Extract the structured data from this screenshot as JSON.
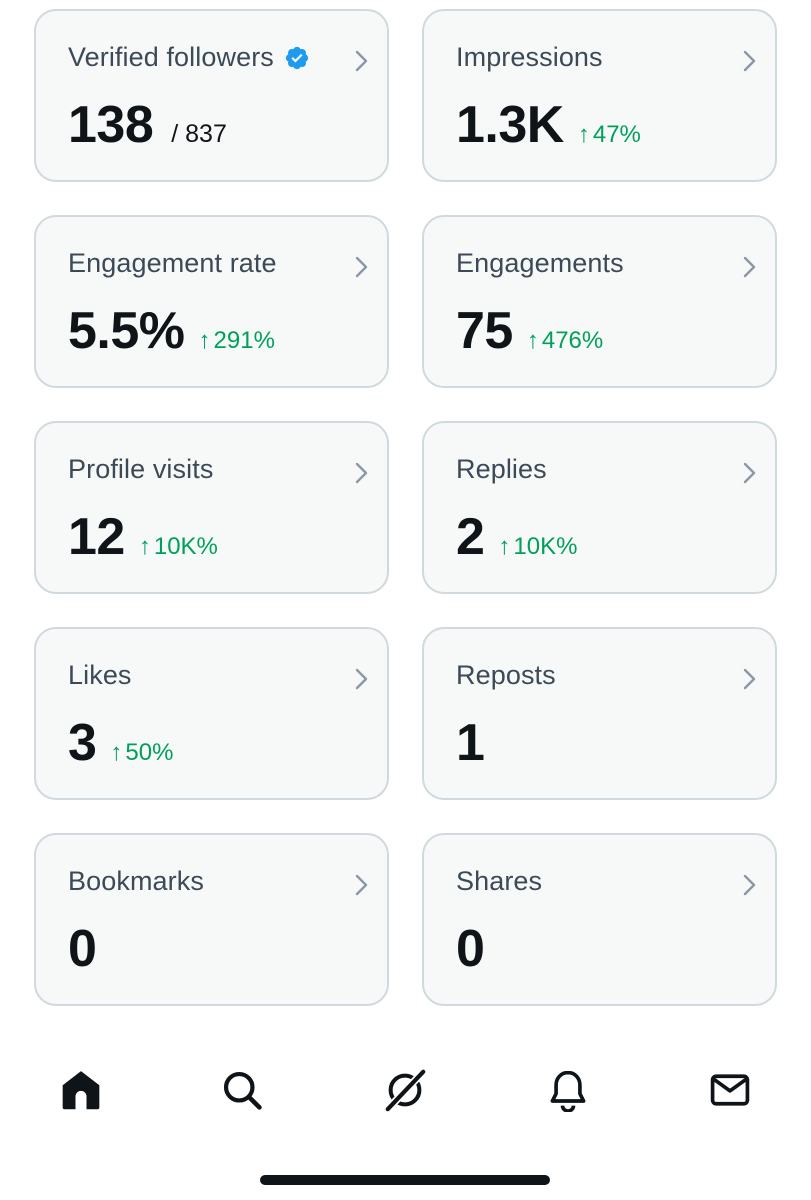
{
  "colors": {
    "card_bg": "#f7f9f9",
    "card_border": "#cfd9de",
    "label": "#3c4a57",
    "value": "#0f1419",
    "positive": "#00a05c",
    "verified_badge": "#1d9bf0"
  },
  "metrics": [
    {
      "label": "Verified followers",
      "value": "138",
      "sub": "/ 837",
      "delta": "",
      "badge_icon": "verified-badge-icon"
    },
    {
      "label": "Impressions",
      "value": "1.3K",
      "sub": "",
      "delta": "47%"
    },
    {
      "label": "Engagement rate",
      "value": "5.5%",
      "sub": "",
      "delta": "291%"
    },
    {
      "label": "Engagements",
      "value": "75",
      "sub": "",
      "delta": "476%"
    },
    {
      "label": "Profile visits",
      "value": "12",
      "sub": "",
      "delta": "10K%"
    },
    {
      "label": "Replies",
      "value": "2",
      "sub": "",
      "delta": "10K%"
    },
    {
      "label": "Likes",
      "value": "3",
      "sub": "",
      "delta": "50%"
    },
    {
      "label": "Reposts",
      "value": "1",
      "sub": "",
      "delta": ""
    },
    {
      "label": "Bookmarks",
      "value": "0",
      "sub": "",
      "delta": ""
    },
    {
      "label": "Shares",
      "value": "0",
      "sub": "",
      "delta": ""
    }
  ],
  "delta_arrow": "↑",
  "tabbar": [
    {
      "name": "home",
      "icon": "home-icon",
      "active": true
    },
    {
      "name": "search",
      "icon": "search-icon",
      "active": false
    },
    {
      "name": "grok",
      "icon": "grok-icon",
      "active": false
    },
    {
      "name": "notifications",
      "icon": "bell-icon",
      "active": false
    },
    {
      "name": "messages",
      "icon": "mail-icon",
      "active": false
    }
  ]
}
